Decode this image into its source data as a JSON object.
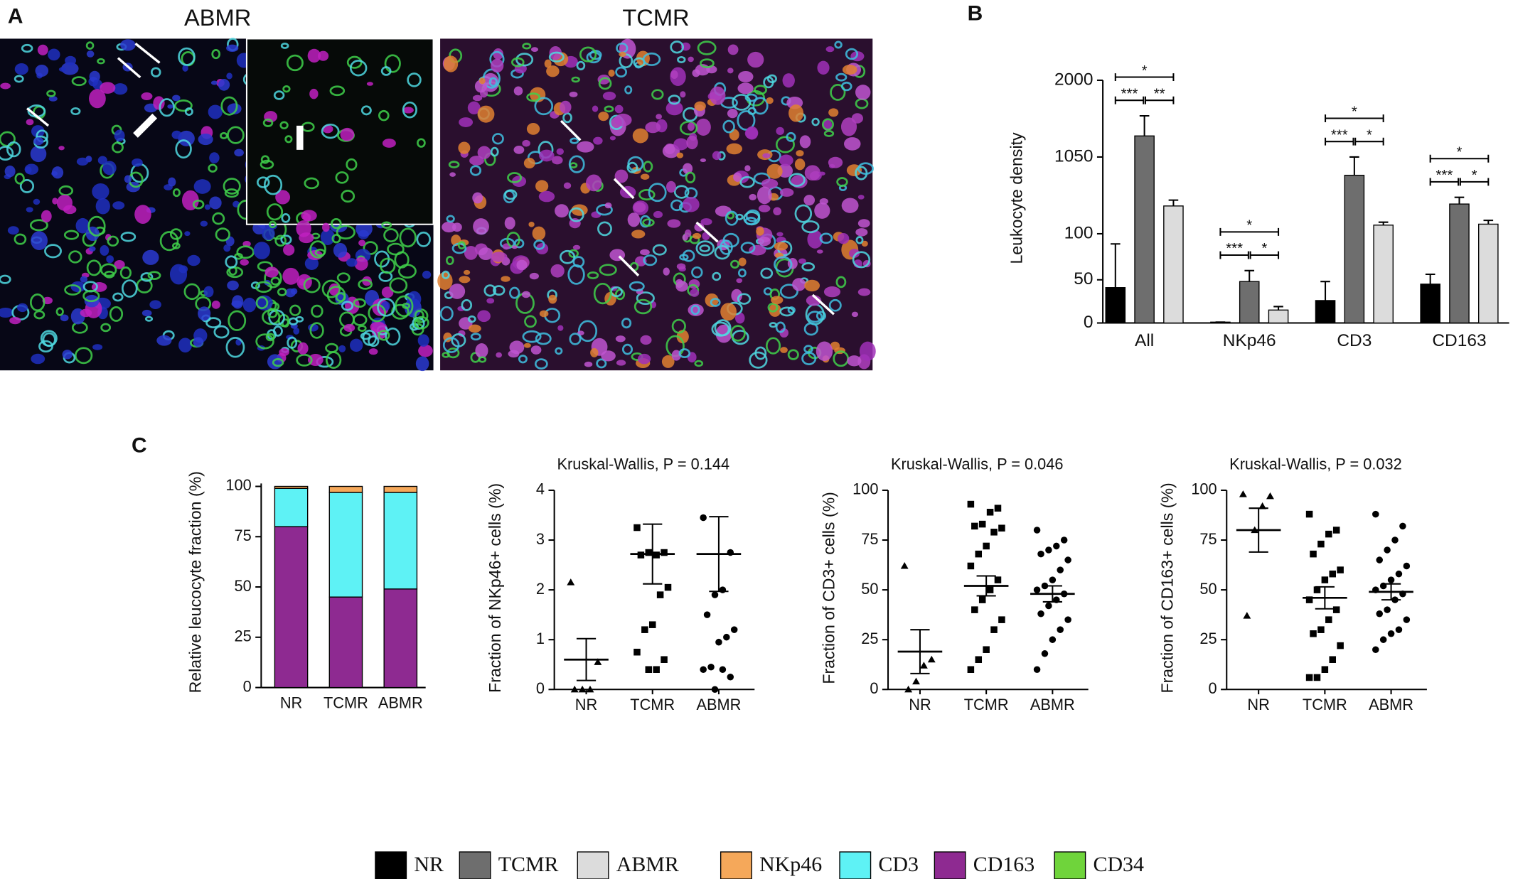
{
  "panel_labels": [
    "A",
    "B",
    "C"
  ],
  "images": [
    {
      "title": "ABMR"
    },
    {
      "title": "TCMR"
    }
  ],
  "chart_data": [
    {
      "type": "bar",
      "y_label": "Leukocyte density",
      "categories": [
        "All",
        "NKp46",
        "CD3",
        "CD163"
      ],
      "series": [
        {
          "name": "NR",
          "color": "#000000",
          "values": [
            41,
            1,
            26,
            45
          ],
          "errors": [
            48,
            0,
            22,
            11
          ]
        },
        {
          "name": "TCMR",
          "color": "#6e6e6e",
          "values": [
            1311,
            48,
            824,
            468
          ],
          "errors": [
            249,
            12,
            226,
            83
          ]
        },
        {
          "name": "ABMR",
          "color": "#dcdcdc",
          "values": [
            444,
            15,
            207,
            219
          ],
          "errors": [
            72,
            4,
            36,
            47
          ]
        }
      ],
      "significance": [
        [
          "*",
          "***",
          "**"
        ],
        [
          "*",
          "***",
          "*"
        ],
        [
          "*",
          "***",
          "*"
        ],
        [
          "*",
          "***",
          "*"
        ]
      ],
      "ylim": [
        0,
        2000
      ],
      "yticks": [
        0,
        50,
        100,
        1050,
        2000
      ]
    },
    {
      "type": "stacked_bar",
      "y_label": "Relative leucocyte fraction (%)",
      "categories": [
        "NR",
        "TCMR",
        "ABMR"
      ],
      "series": [
        {
          "name": "CD163",
          "color": "#8e2a91",
          "values": [
            80,
            45,
            49
          ]
        },
        {
          "name": "CD3",
          "color": "#5ef2f5",
          "values": [
            19,
            52,
            48
          ]
        },
        {
          "name": "NKp46",
          "color": "#f5a85a",
          "values": [
            1,
            3,
            3
          ]
        }
      ],
      "ylim": [
        0,
        100
      ],
      "yticks": [
        0,
        25,
        50,
        75,
        100
      ]
    },
    {
      "type": "scatter",
      "title": "Kruskal-Wallis, P = 0.144",
      "y_label": "Fraction of NKp46+ cells (%)",
      "ylim": [
        0,
        4
      ],
      "yticks": [
        0,
        1,
        2,
        3,
        4
      ],
      "groups": [
        {
          "name": "NR",
          "marker": "triangle",
          "values": [
            2.15,
            0.55,
            0,
            0,
            0
          ],
          "mean": 0.6,
          "sem": 0.42
        },
        {
          "name": "TCMR",
          "marker": "square",
          "values": [
            3.25,
            2.75,
            2.7,
            2.75,
            2.7,
            2.05,
            1.9,
            1.3,
            1.2,
            0.75,
            0.6,
            0.4,
            0.4
          ],
          "mean": 2.72,
          "sem": 0.6
        },
        {
          "name": "ABMR",
          "marker": "circle",
          "values": [
            3.45,
            2.75,
            2.0,
            1.9,
            1.5,
            1.2,
            1.05,
            0.95,
            0.45,
            0.4,
            0.25,
            0.4,
            0
          ],
          "mean": 2.72,
          "sem": 0.75
        }
      ]
    },
    {
      "type": "scatter",
      "title": "Kruskal-Wallis, P = 0.046",
      "y_label": "Fraction of CD3+ cells (%)",
      "ylim": [
        0,
        100
      ],
      "yticks": [
        0,
        25,
        50,
        75,
        100
      ],
      "groups": [
        {
          "name": "NR",
          "marker": "triangle",
          "values": [
            62,
            15,
            12,
            4,
            0
          ],
          "mean": 19,
          "sem": 11
        },
        {
          "name": "TCMR",
          "marker": "square",
          "values": [
            93,
            91,
            89,
            83,
            82,
            81,
            79,
            72,
            68,
            62,
            55,
            50,
            45,
            40,
            35,
            30,
            20,
            15,
            10
          ],
          "mean": 52,
          "sem": 5
        },
        {
          "name": "ABMR",
          "marker": "circle",
          "values": [
            80,
            75,
            72,
            70,
            68,
            65,
            60,
            55,
            52,
            50,
            48,
            45,
            42,
            38,
            35,
            30,
            25,
            18,
            10
          ],
          "mean": 48,
          "sem": 4
        }
      ]
    },
    {
      "type": "scatter",
      "title": "Kruskal-Wallis, P = 0.032",
      "y_label": "Fraction of CD163+ cells (%)",
      "ylim": [
        0,
        100
      ],
      "yticks": [
        0,
        25,
        50,
        75,
        100
      ],
      "groups": [
        {
          "name": "NR",
          "marker": "triangle",
          "values": [
            98,
            97,
            92,
            80,
            37
          ],
          "mean": 80,
          "sem": 11
        },
        {
          "name": "TCMR",
          "marker": "square",
          "values": [
            88,
            80,
            78,
            73,
            68,
            60,
            58,
            55,
            50,
            45,
            40,
            35,
            30,
            28,
            22,
            15,
            10,
            6,
            6
          ],
          "mean": 46,
          "sem": 5.5
        },
        {
          "name": "ABMR",
          "marker": "circle",
          "values": [
            88,
            82,
            75,
            70,
            65,
            62,
            58,
            55,
            52,
            50,
            48,
            45,
            40,
            38,
            35,
            30,
            28,
            25,
            20
          ],
          "mean": 49,
          "sem": 4
        }
      ]
    }
  ],
  "legend_extra": [
    {
      "name": "CD34",
      "color": "#6fd43b"
    }
  ]
}
